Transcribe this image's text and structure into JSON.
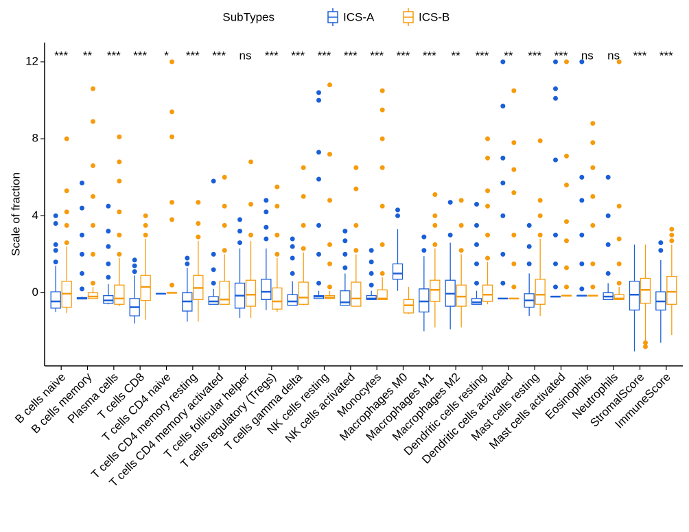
{
  "chart_data": {
    "type": "box",
    "ylabel": "Scale of fraction",
    "legend_title": "SubTypes",
    "legend": "top",
    "categories": [
      "B cells naive",
      "B cells memory",
      "Plasma cells",
      "T cells CD8",
      "T cells CD4 naive",
      "T cells CD4 memory resting",
      "T cells CD4 memory activated",
      "T cells follicular helper",
      "T cells regulatory (Tregs)",
      "T cells gamma delta",
      "NK cells resting",
      "NK cells activated",
      "Monocytes",
      "Macrophages M0",
      "Macrophages M1",
      "Macrophages M2",
      "Dendritic cells resting",
      "Dendritic cells activated",
      "Mast cells resting",
      "Mast cells activated",
      "Eosinophils",
      "Neutrophils",
      "StromalScore",
      "ImmuneScore"
    ],
    "significance": [
      "***",
      "**",
      "***",
      "***",
      "*",
      "***",
      "***",
      "ns",
      "***",
      "***",
      "***",
      "***",
      "***",
      "***",
      "***",
      "**",
      "***",
      "**",
      "***",
      "***",
      "ns",
      "ns",
      "***",
      "***"
    ],
    "ylim": [
      -3.8,
      13.0
    ],
    "yticks": [
      0,
      4,
      8,
      12
    ],
    "series": [
      {
        "name": "ICS-A",
        "color": "#1a5fd8",
        "low": [
          -1.0,
          -0.32,
          -0.6,
          -1.6,
          -0.05,
          -1.5,
          -0.6,
          -1.3,
          -0.9,
          -0.65,
          -0.3,
          -0.65,
          -0.35,
          0.1,
          -2.0,
          -1.9,
          -0.6,
          -0.3,
          -1.2,
          -0.2,
          -0.15,
          -0.35,
          -3.05,
          -2.6
        ],
        "q1": [
          -0.8,
          -0.32,
          -0.55,
          -1.2,
          -0.05,
          -0.95,
          -0.6,
          -0.8,
          -0.35,
          -0.65,
          -0.3,
          -0.65,
          -0.35,
          0.7,
          -1.0,
          -0.7,
          -0.6,
          -0.3,
          -0.75,
          -0.2,
          -0.15,
          -0.35,
          -0.9,
          -0.9
        ],
        "median": [
          -0.45,
          -0.3,
          -0.4,
          -0.75,
          -0.05,
          -0.45,
          -0.45,
          -0.15,
          0.05,
          -0.45,
          -0.2,
          -0.5,
          -0.3,
          1.0,
          -0.45,
          -0.05,
          -0.5,
          -0.3,
          -0.4,
          -0.2,
          -0.15,
          -0.2,
          -0.1,
          -0.45
        ],
        "q3": [
          0.05,
          -0.25,
          -0.15,
          -0.3,
          -0.05,
          0.0,
          -0.2,
          0.5,
          0.7,
          -0.1,
          -0.15,
          0.1,
          -0.15,
          1.5,
          0.2,
          0.65,
          -0.3,
          -0.3,
          -0.05,
          -0.2,
          -0.15,
          0.0,
          0.6,
          0.05
        ],
        "high": [
          1.4,
          -0.2,
          0.45,
          0.9,
          -0.05,
          1.3,
          0.2,
          2.3,
          2.3,
          0.6,
          0.1,
          1.0,
          0.1,
          3.3,
          1.9,
          2.6,
          0.1,
          -0.3,
          1.0,
          -0.2,
          -0.15,
          0.5,
          2.5,
          1.7
        ],
        "outliers": [
          [
            1.6,
            2.2,
            2.5,
            3.6,
            4.0
          ],
          [
            0.2,
            1.0,
            2.0,
            3.0,
            4.4,
            5.7
          ],
          [
            0.8,
            1.5,
            2.4,
            3.2,
            4.5
          ],
          [
            1.1,
            1.4,
            1.7
          ],
          [],
          [
            1.5,
            1.8
          ],
          [
            0.5,
            1.2,
            2.0,
            5.8
          ],
          [
            2.6,
            3.2,
            3.8
          ],
          [
            2.8,
            3.4,
            4.2,
            4.8
          ],
          [
            1.0,
            1.8,
            2.4,
            2.8
          ],
          [
            0.5,
            2.0,
            3.5,
            5.9,
            7.3,
            10.0,
            10.4
          ],
          [
            1.3,
            2.0,
            2.7,
            3.2
          ],
          [
            0.4,
            1.0,
            1.6,
            2.2
          ],
          [
            4.0,
            4.3
          ],
          [
            2.2,
            2.9
          ],
          [
            3.0,
            4.7
          ],
          [
            0.5,
            1.5,
            2.5,
            3.5,
            4.6
          ],
          [
            0.5,
            2.0,
            4.0,
            5.7,
            7.0,
            9.7,
            12.0
          ],
          [
            1.5,
            2.4,
            3.5
          ],
          [
            0.3,
            1.5,
            3.0,
            6.9,
            10.1,
            10.6,
            12.0
          ],
          [
            0.2,
            1.5,
            3.0,
            4.8,
            6.0,
            12.0
          ],
          [
            1.0,
            2.5,
            4.0,
            6.0
          ],
          [],
          [
            2.2,
            2.6
          ]
        ]
      },
      {
        "name": "ICS-B",
        "color": "#f59b0c",
        "low": [
          -1.05,
          -0.3,
          -0.7,
          -1.4,
          0.0,
          -1.5,
          -0.6,
          -1.3,
          -1.0,
          -0.65,
          -0.3,
          -0.7,
          -0.35,
          -1.1,
          -1.8,
          -1.8,
          -0.6,
          -0.3,
          -1.2,
          -0.15,
          -0.15,
          -0.35,
          -2.5,
          -2.2
        ],
        "q1": [
          -0.75,
          -0.3,
          -0.6,
          -0.4,
          0.0,
          -0.35,
          -0.6,
          -0.7,
          -0.85,
          -0.6,
          -0.3,
          -0.7,
          -0.35,
          -1.05,
          -0.45,
          -0.7,
          -0.45,
          -0.3,
          -0.6,
          -0.15,
          -0.15,
          -0.35,
          -0.55,
          -0.6
        ],
        "median": [
          -0.05,
          -0.2,
          -0.3,
          0.3,
          0.0,
          0.25,
          -0.35,
          -0.1,
          -0.45,
          -0.25,
          -0.25,
          -0.3,
          -0.3,
          -0.65,
          0.15,
          -0.2,
          -0.1,
          -0.3,
          -0.1,
          -0.15,
          -0.15,
          -0.3,
          0.15,
          0.05
        ],
        "q3": [
          0.6,
          0.0,
          0.4,
          0.9,
          0.0,
          0.9,
          0.6,
          0.65,
          0.25,
          0.55,
          -0.15,
          0.55,
          0.15,
          -0.35,
          0.65,
          0.4,
          0.4,
          -0.3,
          0.7,
          -0.15,
          -0.15,
          -0.1,
          0.75,
          0.85
        ],
        "high": [
          2.4,
          0.3,
          1.8,
          2.8,
          0.0,
          2.7,
          2.0,
          2.7,
          1.8,
          2.1,
          0.1,
          2.0,
          0.8,
          0.3,
          2.3,
          2.0,
          1.6,
          -0.3,
          2.8,
          -0.15,
          -0.15,
          0.3,
          2.5,
          2.5
        ],
        "outliers": [
          [
            2.6,
            3.5,
            4.2,
            5.3,
            8.0
          ],
          [
            0.5,
            2.0,
            3.5,
            5.0,
            6.6,
            8.9,
            10.6
          ],
          [
            2.0,
            3.0,
            4.2,
            5.8,
            6.8,
            8.1
          ],
          [
            3.0,
            3.5,
            4.0
          ],
          [
            0.4,
            3.8,
            4.7,
            8.1,
            9.4,
            12.0
          ],
          [
            2.9,
            3.6,
            4.7
          ],
          [
            2.2,
            3.5,
            4.5,
            6.0
          ],
          [
            3.0,
            4.6,
            6.8
          ],
          [
            2.0,
            3.0,
            4.5,
            5.5
          ],
          [
            2.3,
            3.5,
            5.0,
            6.5
          ],
          [
            0.3,
            1.5,
            2.5,
            4.8,
            7.2,
            10.8
          ],
          [
            2.2,
            3.5,
            5.4,
            6.5
          ],
          [
            1.0,
            2.5,
            4.5,
            6.5,
            8.0,
            9.5,
            10.5
          ],
          [],
          [
            2.5,
            3.5,
            4.0,
            5.1
          ],
          [
            2.2,
            3.5,
            4.8
          ],
          [
            1.8,
            3.0,
            4.5,
            5.3,
            7.0,
            8.0
          ],
          [
            0.3,
            1.5,
            3.0,
            5.2,
            6.4,
            7.8,
            10.5
          ],
          [
            3.0,
            4.0,
            4.8,
            7.9
          ],
          [
            0.3,
            1.3,
            2.7,
            3.7,
            5.6,
            7.1,
            12.0
          ],
          [
            0.3,
            1.5,
            3.5,
            5.0,
            6.5,
            7.8,
            8.8
          ],
          [
            0.5,
            1.5,
            2.8,
            4.5,
            12.0
          ],
          [
            -2.6,
            -2.8
          ],
          [
            2.7,
            3.0,
            3.3
          ]
        ]
      }
    ]
  }
}
